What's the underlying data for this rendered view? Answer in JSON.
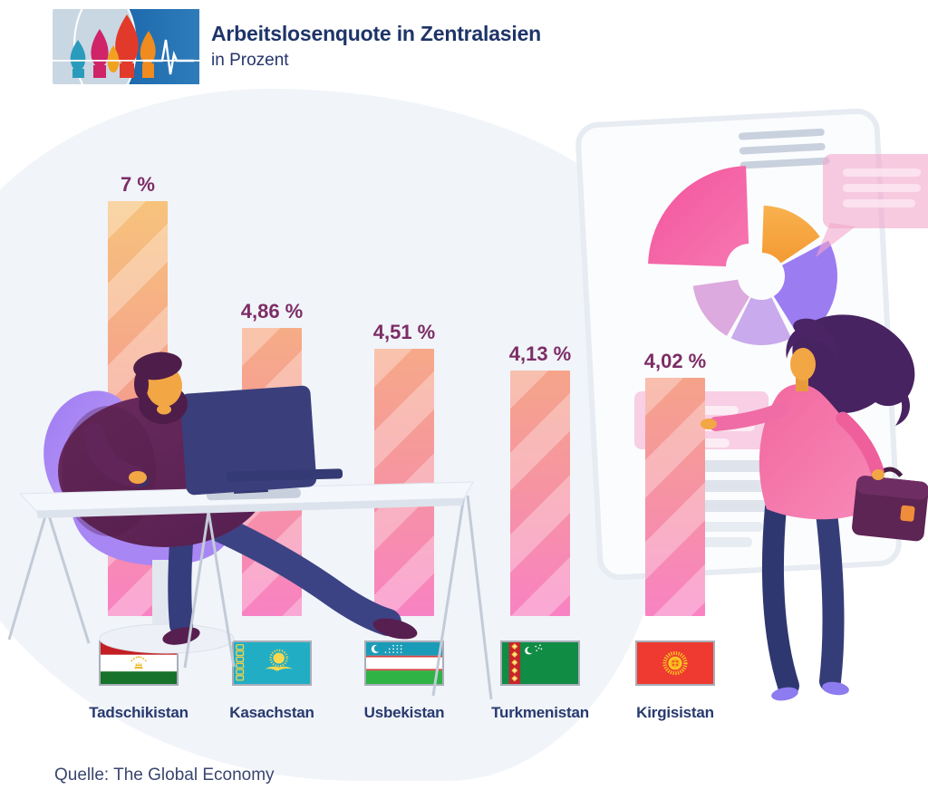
{
  "header": {
    "title": "Arbeitslosenquote in Zentralasien",
    "subtitle": "in Prozent",
    "logo_motifs": [
      "st-basils-cathedral-icon",
      "pulse-line-icon"
    ]
  },
  "chart_data": {
    "type": "bar",
    "title": "Arbeitslosenquote in Zentralasien",
    "subtitle": "in Prozent",
    "unit": "%",
    "categories": [
      "Tadschikistan",
      "Kasachstan",
      "Usbekistan",
      "Turkmenistan",
      "Kirgisistan"
    ],
    "values": [
      7,
      4.86,
      4.51,
      4.13,
      4.02
    ],
    "value_labels": [
      "7 %",
      "4,86 %",
      "4,51 %",
      "4,13 %",
      "4,02 %"
    ],
    "ylim": [
      0,
      7
    ],
    "grid": false,
    "legend_position": "none",
    "bar_colors": {
      "top": "#f7c37c",
      "middle": "#f59e8d",
      "bottom": "#f882c3"
    },
    "value_label_color": "#7c2d66",
    "category_label_color": "#27396e"
  },
  "flags": [
    {
      "country": "Tadschikistan",
      "icon": "tajikistan-flag-icon"
    },
    {
      "country": "Kasachstan",
      "icon": "kazakhstan-flag-icon"
    },
    {
      "country": "Usbekistan",
      "icon": "uzbekistan-flag-icon"
    },
    {
      "country": "Turkmenistan",
      "icon": "turkmenistan-flag-icon"
    },
    {
      "country": "Kirgisistan",
      "icon": "kyrgyzstan-flag-icon"
    }
  ],
  "source": {
    "label": "Quelle: The Global Economy"
  },
  "colors": {
    "title": "#1e3469",
    "background_blob": "#f1f4f9",
    "page_background": "#ffffff"
  }
}
